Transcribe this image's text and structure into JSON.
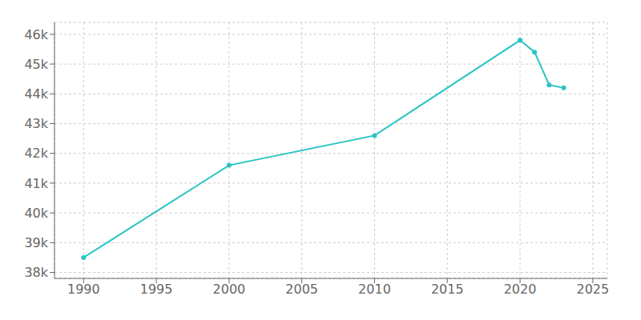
{
  "chart_data": {
    "type": "line",
    "x": [
      1990,
      2000,
      2010,
      2020,
      2021,
      2022,
      2023
    ],
    "values": [
      38500,
      41600,
      42600,
      45800,
      45400,
      44300,
      44200
    ],
    "color": "#2ac4c4",
    "marker": "circle",
    "xlim": [
      1988,
      2026
    ],
    "xticks": [
      1990,
      1995,
      2000,
      2005,
      2010,
      2015,
      2020,
      2025
    ],
    "ylim": [
      37800,
      46400
    ],
    "yticks": [
      {
        "value": 38000,
        "label": "38k"
      },
      {
        "value": 39000,
        "label": "39k"
      },
      {
        "value": 40000,
        "label": "40k"
      },
      {
        "value": 41000,
        "label": "41k"
      },
      {
        "value": 42000,
        "label": "42k"
      },
      {
        "value": 43000,
        "label": "43k"
      },
      {
        "value": 44000,
        "label": "44k"
      },
      {
        "value": 45000,
        "label": "45k"
      },
      {
        "value": 46000,
        "label": "46k"
      }
    ],
    "grid": true
  }
}
